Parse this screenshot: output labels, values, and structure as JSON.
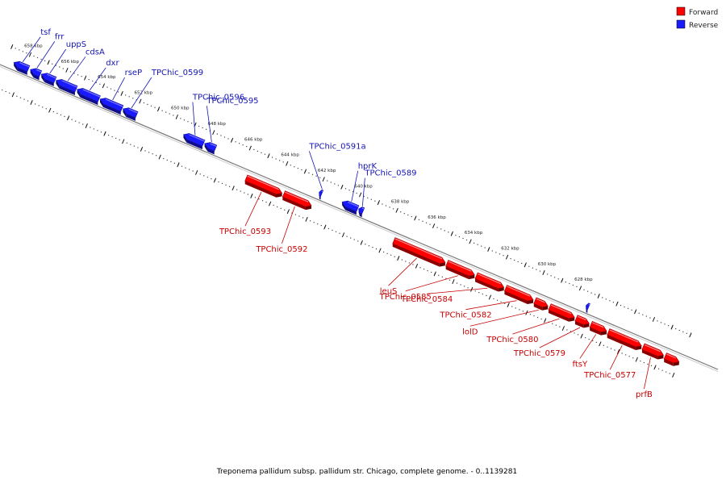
{
  "caption": "Treponema pallidum subsp. pallidum str. Chicago, complete genome. - 0..1139281",
  "legend": [
    {
      "label": "Forward",
      "color": "#ff0000"
    },
    {
      "label": "Reverse",
      "color": "#1a1aff"
    }
  ],
  "colors": {
    "forward": "#ff0000",
    "forward_label": "#c80000",
    "reverse": "#1a1aff",
    "reverse_label": "#1414b4",
    "backbone": "#777777"
  },
  "scale": {
    "unit": "kbp",
    "ticks": [
      {
        "kbp": 658,
        "label": "658 kbp"
      },
      {
        "kbp": 656,
        "label": "656 kbp"
      },
      {
        "kbp": 654,
        "label": "654 kbp"
      },
      {
        "kbp": 652,
        "label": "652 kbp"
      },
      {
        "kbp": 650,
        "label": "650 kbp"
      },
      {
        "kbp": 648,
        "label": "648 kbp"
      },
      {
        "kbp": 646,
        "label": "646 kbp"
      },
      {
        "kbp": 644,
        "label": "644 kbp"
      },
      {
        "kbp": 642,
        "label": "642 kbp"
      },
      {
        "kbp": 640,
        "label": "640 kbp"
      },
      {
        "kbp": 638,
        "label": "638 kbp"
      },
      {
        "kbp": 636,
        "label": "636 kbp"
      },
      {
        "kbp": 634,
        "label": "634 kbp"
      },
      {
        "kbp": 632,
        "label": "632 kbp"
      },
      {
        "kbp": 630,
        "label": "630 kbp"
      },
      {
        "kbp": 628,
        "label": "628 kbp"
      }
    ]
  },
  "genes": [
    {
      "name": "tsf",
      "strand": "reverse",
      "start_kbp": 658.6,
      "end_kbp": 657.8
    },
    {
      "name": "frr",
      "strand": "reverse",
      "start_kbp": 657.7,
      "end_kbp": 657.15
    },
    {
      "name": "uppS",
      "strand": "reverse",
      "start_kbp": 657.1,
      "end_kbp": 656.35
    },
    {
      "name": "cdsA",
      "strand": "reverse",
      "start_kbp": 656.3,
      "end_kbp": 655.2
    },
    {
      "name": "dxr",
      "strand": "reverse",
      "start_kbp": 655.15,
      "end_kbp": 653.95
    },
    {
      "name": "rseP",
      "strand": "reverse",
      "start_kbp": 653.9,
      "end_kbp": 652.7
    },
    {
      "name": "TPChic_0599",
      "strand": "reverse",
      "start_kbp": 652.65,
      "end_kbp": 651.9
    },
    {
      "name": "TPChic_0596",
      "strand": "reverse",
      "start_kbp": 649.35,
      "end_kbp": 648.25
    },
    {
      "name": "TPChic_0595",
      "strand": "reverse",
      "start_kbp": 648.2,
      "end_kbp": 647.6
    },
    {
      "name": "TPChic_0593",
      "strand": "forward",
      "start_kbp": 645.6,
      "end_kbp": 643.65
    },
    {
      "name": "TPChic_0592",
      "strand": "forward",
      "start_kbp": 643.55,
      "end_kbp": 642.05
    },
    {
      "name": "TPChic_0591a",
      "strand": "reverse",
      "start_kbp": 641.95,
      "end_kbp": 641.8
    },
    {
      "name": "hprK",
      "strand": "reverse",
      "start_kbp": 640.7,
      "end_kbp": 639.85
    },
    {
      "name": "TPChic_0589",
      "strand": "reverse",
      "start_kbp": 639.8,
      "end_kbp": 639.55
    },
    {
      "name": "leuS",
      "strand": "forward",
      "start_kbp": 637.55,
      "end_kbp": 634.75
    },
    {
      "name": "TPChic_0585",
      "strand": "forward",
      "start_kbp": 634.65,
      "end_kbp": 633.15
    },
    {
      "name": "TPChic_0584",
      "strand": "forward",
      "start_kbp": 633.05,
      "end_kbp": 631.55
    },
    {
      "name": "TPChic_0582",
      "strand": "forward",
      "start_kbp": 631.45,
      "end_kbp": 629.95
    },
    {
      "name": "lolD",
      "strand": "forward",
      "start_kbp": 629.85,
      "end_kbp": 629.15
    },
    {
      "name": "TPChic_0580",
      "strand": "forward",
      "start_kbp": 629.05,
      "end_kbp": 627.7
    },
    {
      "name": "TPChic_0579",
      "strand": "forward",
      "start_kbp": 627.6,
      "end_kbp": 626.9
    },
    {
      "name": "ftsY",
      "strand": "forward",
      "start_kbp": 626.8,
      "end_kbp": 625.95
    },
    {
      "name": "TPChic_0577",
      "strand": "forward",
      "start_kbp": 625.85,
      "end_kbp": 624.05
    },
    {
      "name": "prfB",
      "strand": "forward",
      "start_kbp": 623.95,
      "end_kbp": 622.85
    },
    {
      "name": "",
      "strand": "forward",
      "start_kbp": 622.75,
      "end_kbp": 622.0
    },
    {
      "name": "",
      "strand": "reverse",
      "start_kbp": 627.4,
      "end_kbp": 627.25
    }
  ]
}
